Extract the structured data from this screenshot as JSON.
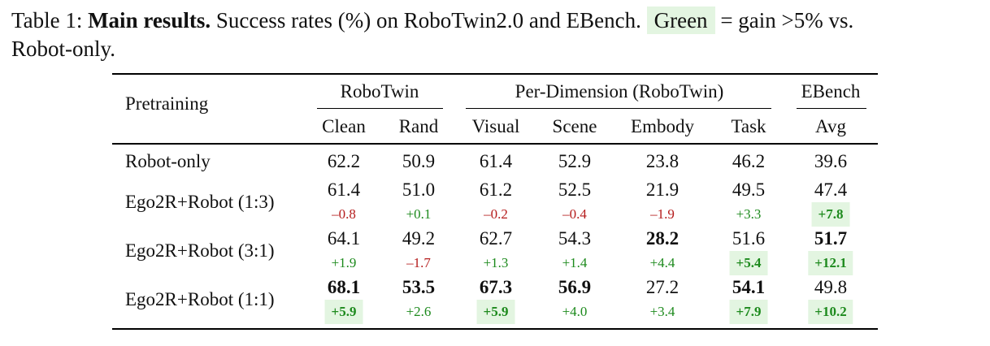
{
  "caption": {
    "label": "Table 1:",
    "bold_title": "Main results.",
    "text_a": "Success rates (%) on RoboTwin2.0 and EBench.",
    "green_word": "Green",
    "text_b": "= gain >5% vs.",
    "text_c": "Robot-only."
  },
  "header": {
    "row_label": "Pretraining",
    "groups": [
      "RoboTwin",
      "Per-Dimension (RoboTwin)",
      "EBench"
    ],
    "columns": [
      "Clean",
      "Rand",
      "Visual",
      "Scene",
      "Embody",
      "Task",
      "Avg"
    ]
  },
  "rows": [
    {
      "label": "Robot-only",
      "values": [
        "62.2",
        "50.9",
        "61.4",
        "52.9",
        "23.8",
        "46.2",
        "39.6"
      ],
      "bold": [
        false,
        false,
        false,
        false,
        false,
        false,
        false
      ],
      "deltas": null
    },
    {
      "label": "Ego2R+Robot (1:3)",
      "values": [
        "61.4",
        "51.0",
        "61.2",
        "52.5",
        "21.9",
        "49.5",
        "47.4"
      ],
      "bold": [
        false,
        false,
        false,
        false,
        false,
        false,
        false
      ],
      "deltas": [
        "–0.8",
        "+0.1",
        "–0.2",
        "–0.4",
        "–1.9",
        "+3.3",
        "+7.8"
      ],
      "delta_sign": [
        "neg",
        "pos",
        "neg",
        "neg",
        "neg",
        "pos",
        "pos"
      ],
      "delta_highlight": [
        false,
        false,
        false,
        false,
        false,
        false,
        true
      ]
    },
    {
      "label": "Ego2R+Robot (3:1)",
      "values": [
        "64.1",
        "49.2",
        "62.7",
        "54.3",
        "28.2",
        "51.6",
        "51.7"
      ],
      "bold": [
        false,
        false,
        false,
        false,
        true,
        false,
        true
      ],
      "deltas": [
        "+1.9",
        "–1.7",
        "+1.3",
        "+1.4",
        "+4.4",
        "+5.4",
        "+12.1"
      ],
      "delta_sign": [
        "pos",
        "neg",
        "pos",
        "pos",
        "pos",
        "pos",
        "pos"
      ],
      "delta_highlight": [
        false,
        false,
        false,
        false,
        false,
        true,
        true
      ]
    },
    {
      "label": "Ego2R+Robot (1:1)",
      "values": [
        "68.1",
        "53.5",
        "67.3",
        "56.9",
        "27.2",
        "54.1",
        "49.8"
      ],
      "bold": [
        true,
        true,
        true,
        true,
        false,
        true,
        false
      ],
      "deltas": [
        "+5.9",
        "+2.6",
        "+5.9",
        "+4.0",
        "+3.4",
        "+7.9",
        "+10.2"
      ],
      "delta_sign": [
        "pos",
        "pos",
        "pos",
        "pos",
        "pos",
        "pos",
        "pos"
      ],
      "delta_highlight": [
        true,
        false,
        true,
        false,
        false,
        true,
        true
      ]
    }
  ],
  "colors": {
    "positive": "#1d8a1d",
    "negative": "#b51c1c",
    "highlight": "#e3f5e1"
  }
}
